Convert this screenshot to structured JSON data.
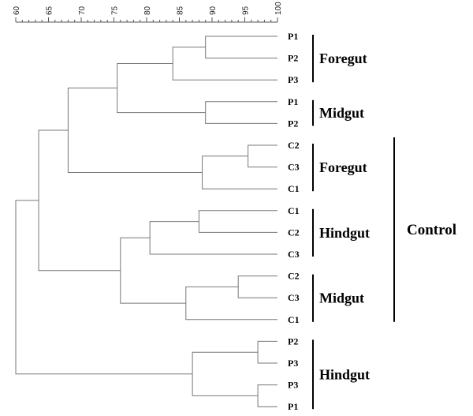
{
  "axis": {
    "min": 60,
    "max": 100,
    "ticks": [
      60,
      65,
      70,
      75,
      80,
      85,
      90,
      95,
      100
    ]
  },
  "leaves": [
    "P1",
    "P2",
    "P3",
    "P1",
    "P2",
    "C2",
    "C3",
    "C1",
    "C1",
    "C2",
    "C3",
    "C2",
    "C3",
    "C1",
    "P2",
    "P3",
    "P3",
    "P1"
  ],
  "merges": [
    {
      "a": "L0",
      "b": "L1",
      "sim": 89
    },
    {
      "a": "M0",
      "b": "L2",
      "sim": 84
    },
    {
      "a": "L3",
      "b": "L4",
      "sim": 89
    },
    {
      "a": "M1",
      "b": "M2",
      "sim": 75.5
    },
    {
      "a": "L5",
      "b": "L6",
      "sim": 95.5
    },
    {
      "a": "M4",
      "b": "L7",
      "sim": 88.5
    },
    {
      "a": "M3",
      "b": "M5",
      "sim": 68
    },
    {
      "a": "L8",
      "b": "L9",
      "sim": 88
    },
    {
      "a": "M7",
      "b": "L10",
      "sim": 80.5
    },
    {
      "a": "L11",
      "b": "L12",
      "sim": 94
    },
    {
      "a": "M9",
      "b": "L13",
      "sim": 86
    },
    {
      "a": "M8",
      "b": "M10",
      "sim": 76
    },
    {
      "a": "M6",
      "b": "M11",
      "sim": 63.5
    },
    {
      "a": "L14",
      "b": "L15",
      "sim": 97
    },
    {
      "a": "L16",
      "b": "L17",
      "sim": 97
    },
    {
      "a": "M13",
      "b": "M14",
      "sim": 87
    },
    {
      "a": "M12",
      "b": "M15",
      "sim": 60
    }
  ],
  "groups": [
    {
      "label": "Foregut",
      "from": 0,
      "to": 2
    },
    {
      "label": "Midgut",
      "from": 3,
      "to": 4
    },
    {
      "label": "Foregut",
      "from": 5,
      "to": 7
    },
    {
      "label": "Hindgut",
      "from": 8,
      "to": 10
    },
    {
      "label": "Midgut",
      "from": 11,
      "to": 13
    },
    {
      "label": "Hindgut",
      "from": 14,
      "to": 17
    }
  ],
  "control": {
    "label": "Control",
    "from": 5,
    "to": 13
  }
}
